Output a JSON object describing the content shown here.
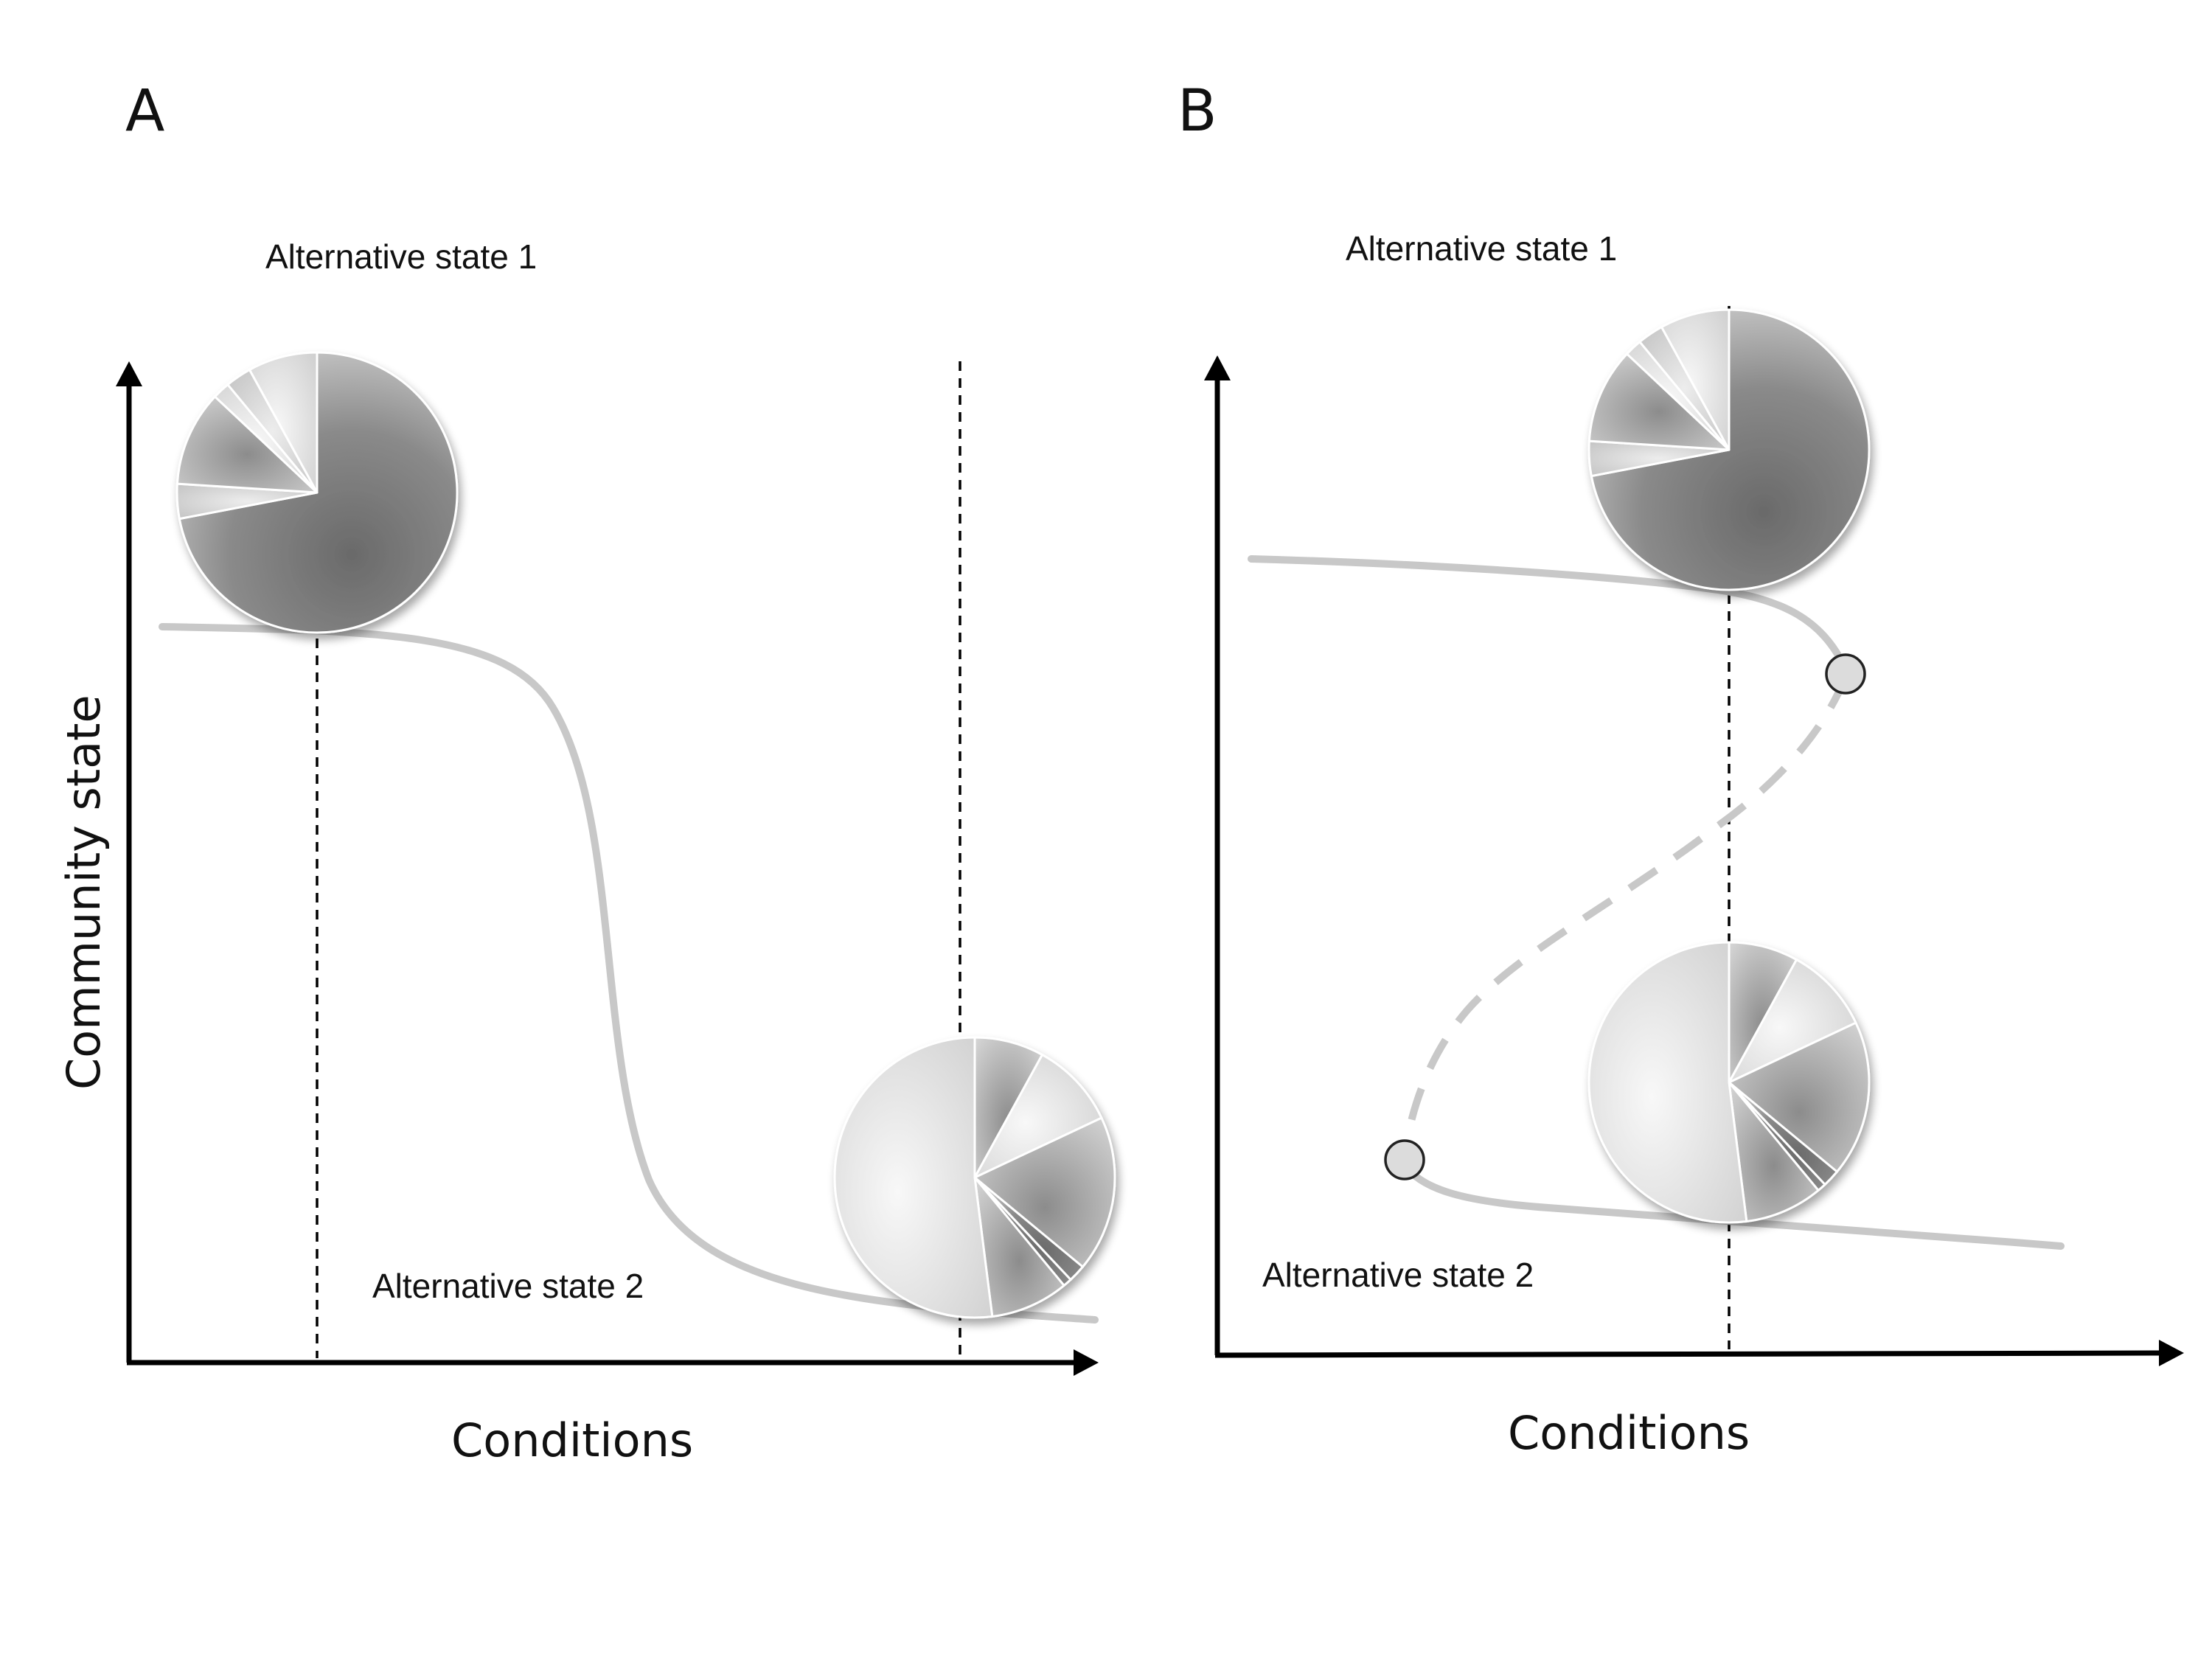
{
  "panel_a": {
    "letter": "A",
    "top_state_label": "Alternative state 1",
    "bottom_state_label": "Alternative state 2",
    "x_axis_label": "Conditions",
    "y_axis_label": "Community state",
    "curve_style": "solid sigmoid decline",
    "top_pie": {
      "dominant": "dark",
      "slices": [
        0.72,
        0.04,
        0.11,
        0.02,
        0.03,
        0.08
      ]
    },
    "bottom_pie": {
      "dominant": "light",
      "slices": [
        0.08,
        0.1,
        0.18,
        0.02,
        0.01,
        0.09,
        0.52
      ]
    }
  },
  "panel_b": {
    "letter": "B",
    "top_state_label": "Alternative state 1",
    "bottom_state_label": "Alternative state 2",
    "x_axis_label": "Conditions",
    "curve_style": "S-shaped fold with dashed unstable middle branch",
    "bifurcation_points": 2,
    "top_pie": {
      "dominant": "dark",
      "slices": [
        0.72,
        0.04,
        0.11,
        0.02,
        0.03,
        0.08
      ]
    },
    "bottom_pie": {
      "dominant": "light",
      "slices": [
        0.08,
        0.1,
        0.18,
        0.02,
        0.01,
        0.09,
        0.52
      ]
    }
  },
  "colors": {
    "curve": "#c8c8c8",
    "axis": "#000000",
    "dark_slice_light": "#cfcfcf",
    "dark_slice_dark": "#6e6e6e",
    "light_slice_light": "#f6f6f6",
    "light_slice_dark": "#d2d2d2"
  }
}
